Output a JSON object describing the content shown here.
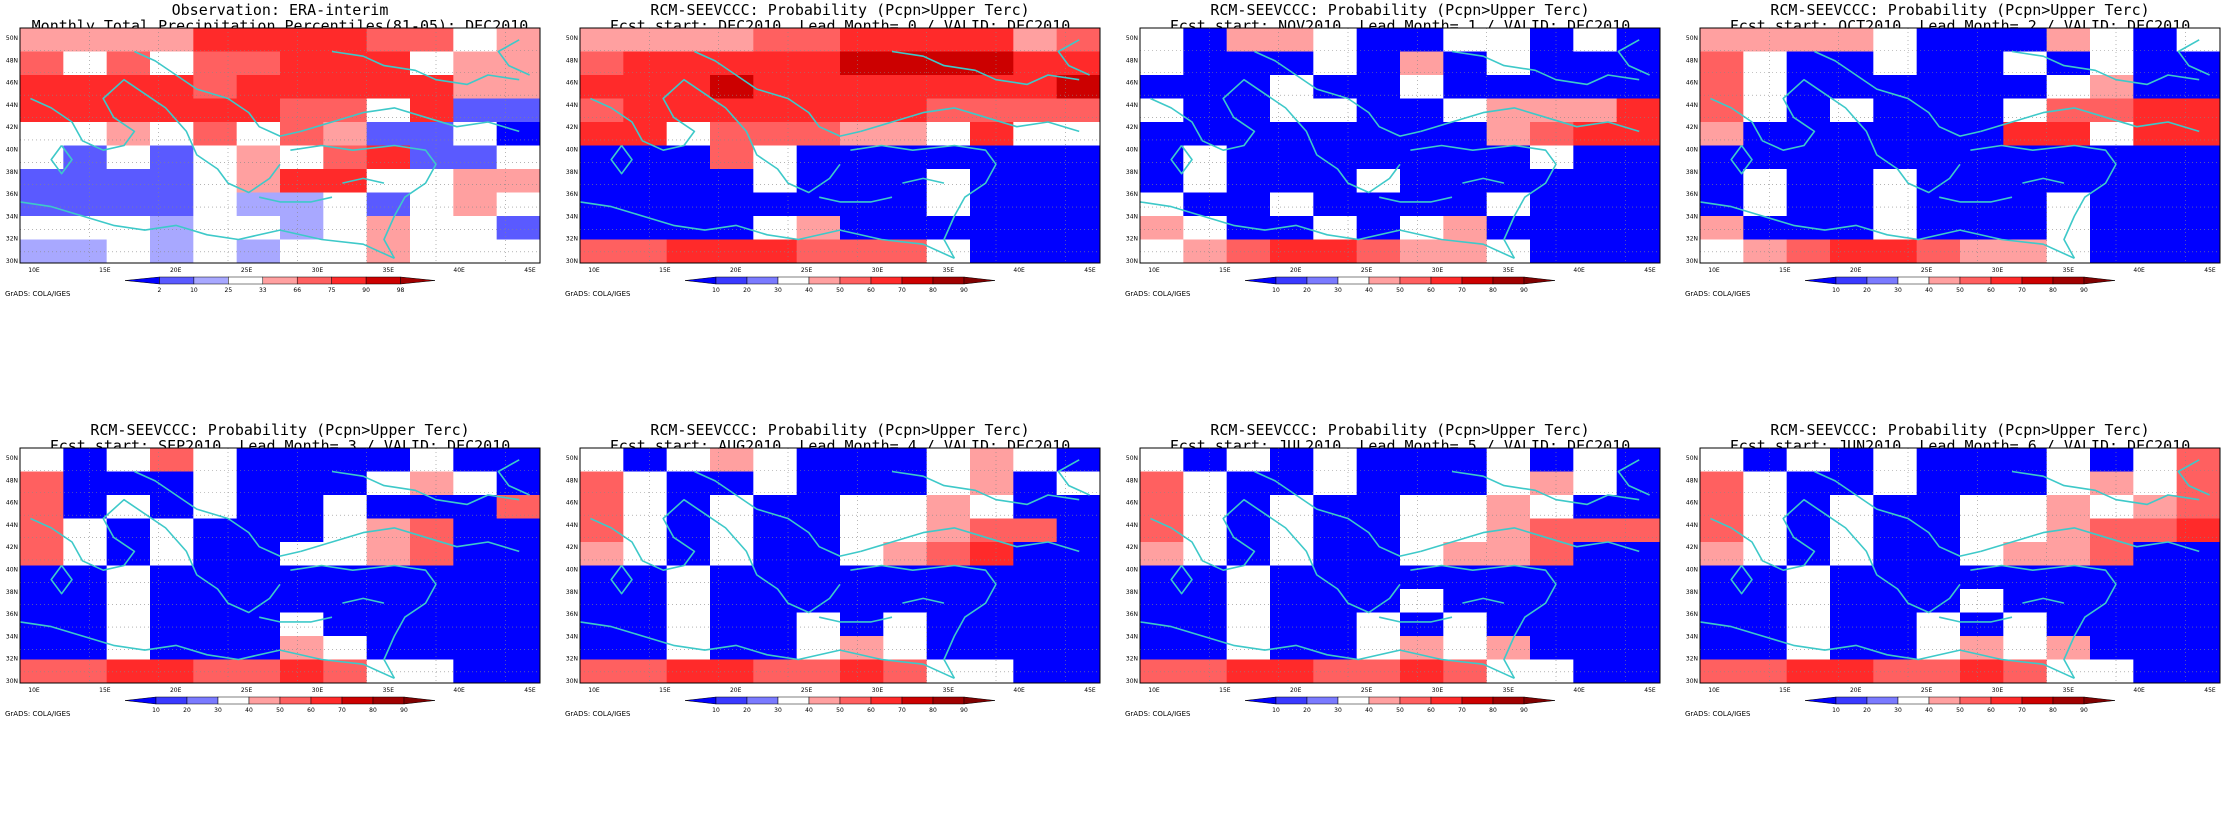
{
  "credit": "GrADS: COLA/IGES",
  "lon_ticks": [
    "10E",
    "15E",
    "20E",
    "25E",
    "30E",
    "35E",
    "40E",
    "45E"
  ],
  "lat_ticks": [
    "50N",
    "48N",
    "46N",
    "44N",
    "42N",
    "40N",
    "38N",
    "36N",
    "34N",
    "32N",
    "30N"
  ],
  "obs_colorbar": [
    "2",
    "10",
    "25",
    "33",
    "66",
    "75",
    "90",
    "98"
  ],
  "prob_colorbar": [
    "10",
    "20",
    "30",
    "40",
    "50",
    "60",
    "70",
    "80",
    "90"
  ],
  "colors": {
    "blue": "#0000ff",
    "mid_blue": "#5a5aff",
    "light_blue": "#a8a8ff",
    "white": "#ffffff",
    "light_red": "#ffa0a0",
    "mid_red": "#ff6060",
    "red": "#ff2a2a",
    "dark_red": "#cc0000",
    "darkest_red": "#a00000",
    "coast": "#3ec9c9"
  },
  "panels": [
    {
      "title1": "Observation: ERA-interim",
      "title2": "Monthly Total Precipitation Percentiles(81-05): DEC2010",
      "colorbar": "obs"
    },
    {
      "title1": "RCM-SEEVCCC: Probability (Pcpn>Upper Terc)",
      "title2": "Fcst start: DEC2010  Lead Month= 0 / VALID: DEC2010",
      "colorbar": "prob"
    },
    {
      "title1": "RCM-SEEVCCC: Probability (Pcpn>Upper Terc)",
      "title2": "Fcst start: NOV2010  Lead Month= 1 / VALID: DEC2010",
      "colorbar": "prob"
    },
    {
      "title1": "RCM-SEEVCCC: Probability (Pcpn>Upper Terc)",
      "title2": "Fcst start: OCT2010  Lead Month= 2 / VALID: DEC2010",
      "colorbar": "prob"
    },
    {
      "title1": "RCM-SEEVCCC: Probability (Pcpn>Upper Terc)",
      "title2": "Fcst start: SEP2010  Lead Month= 3 / VALID: DEC2010",
      "colorbar": "prob"
    },
    {
      "title1": "RCM-SEEVCCC: Probability (Pcpn>Upper Terc)",
      "title2": "Fcst start: AUG2010  Lead Month= 4 / VALID: DEC2010",
      "colorbar": "prob"
    },
    {
      "title1": "RCM-SEEVCCC: Probability (Pcpn>Upper Terc)",
      "title2": "Fcst start: JUL2010  Lead Month= 5 / VALID: DEC2010",
      "colorbar": "prob"
    },
    {
      "title1": "RCM-SEEVCCC: Probability (Pcpn>Upper Terc)",
      "title2": "Fcst start: JUN2010  Lead Month= 6 / VALID: DEC2010",
      "colorbar": "prob"
    }
  ]
}
